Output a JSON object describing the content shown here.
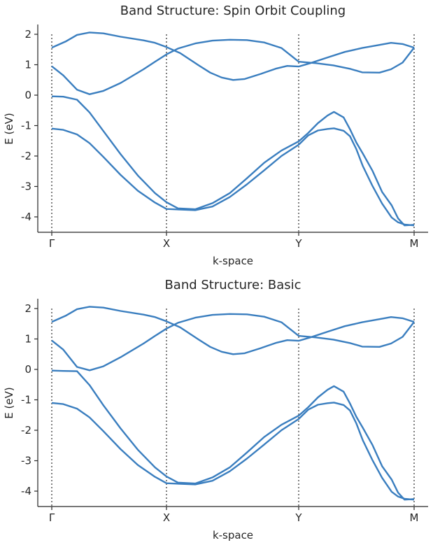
{
  "chart_data": [
    {
      "type": "line",
      "title": "Band Structure: Spin Orbit Coupling",
      "xlabel": "k-space",
      "ylabel": "E (eV)",
      "ylim": [
        -4.5,
        2.35
      ],
      "yticks": [
        2,
        1,
        0,
        -1,
        -2,
        -3,
        -4
      ],
      "ytick_labels": [
        "2",
        "1",
        "0",
        "-1",
        "-2",
        "-3",
        "-4"
      ],
      "k_points": [
        {
          "label": "Γ",
          "k": 0
        },
        {
          "label": "X",
          "k": 1
        },
        {
          "label": "Y",
          "k": 2.15
        },
        {
          "label": "M",
          "k": 3.15
        }
      ],
      "grid": false,
      "series": [
        {
          "color": "#3a7ebf",
          "points": [
            [
              0,
              1.56
            ],
            [
              0.12,
              1.76
            ],
            [
              0.22,
              1.98
            ],
            [
              0.33,
              2.06
            ],
            [
              0.45,
              2.03
            ],
            [
              0.6,
              1.92
            ],
            [
              0.8,
              1.8
            ],
            [
              0.9,
              1.72
            ],
            [
              1,
              1.58
            ],
            [
              1.12,
              1.38
            ],
            [
              1.28,
              0.98
            ],
            [
              1.38,
              0.74
            ],
            [
              1.48,
              0.58
            ],
            [
              1.58,
              0.5
            ],
            [
              1.68,
              0.53
            ],
            [
              1.82,
              0.7
            ],
            [
              1.95,
              0.87
            ],
            [
              2.05,
              0.96
            ],
            [
              2.15,
              0.94
            ],
            [
              2.25,
              1.05
            ],
            [
              2.4,
              1.24
            ],
            [
              2.55,
              1.42
            ],
            [
              2.7,
              1.55
            ],
            [
              2.85,
              1.65
            ],
            [
              2.95,
              1.72
            ],
            [
              3.05,
              1.68
            ],
            [
              3.15,
              1.56
            ]
          ]
        },
        {
          "color": "#3a7ebf",
          "points": [
            [
              0,
              0.95
            ],
            [
              0.1,
              0.65
            ],
            [
              0.22,
              0.18
            ],
            [
              0.33,
              0.03
            ],
            [
              0.45,
              0.14
            ],
            [
              0.6,
              0.4
            ],
            [
              0.8,
              0.85
            ],
            [
              0.9,
              1.1
            ],
            [
              1,
              1.34
            ],
            [
              1.1,
              1.53
            ],
            [
              1.25,
              1.7
            ],
            [
              1.4,
              1.79
            ],
            [
              1.55,
              1.82
            ],
            [
              1.7,
              1.81
            ],
            [
              1.85,
              1.73
            ],
            [
              2,
              1.55
            ],
            [
              2.15,
              1.1
            ],
            [
              2.3,
              1.05
            ],
            [
              2.45,
              0.98
            ],
            [
              2.6,
              0.86
            ],
            [
              2.7,
              0.75
            ],
            [
              2.85,
              0.74
            ],
            [
              2.95,
              0.85
            ],
            [
              3.05,
              1.07
            ],
            [
              3.15,
              1.56
            ]
          ]
        },
        {
          "color": "#3a7ebf",
          "points": [
            [
              0,
              -0.04
            ],
            [
              0.1,
              -0.05
            ],
            [
              0.22,
              -0.15
            ],
            [
              0.33,
              -0.57
            ],
            [
              0.45,
              -1.18
            ],
            [
              0.6,
              -1.94
            ],
            [
              0.75,
              -2.64
            ],
            [
              0.9,
              -3.22
            ],
            [
              1,
              -3.52
            ],
            [
              1.1,
              -3.72
            ],
            [
              1.25,
              -3.75
            ],
            [
              1.4,
              -3.55
            ],
            [
              1.55,
              -3.22
            ],
            [
              1.7,
              -2.73
            ],
            [
              1.85,
              -2.22
            ],
            [
              2,
              -1.82
            ],
            [
              2.15,
              -1.52
            ],
            [
              2.3,
              -1.24
            ],
            [
              2.45,
              -0.92
            ],
            [
              2.6,
              -0.67
            ],
            [
              2.7,
              -0.55
            ],
            [
              2.85,
              -0.73
            ],
            [
              2.95,
              -1.12
            ],
            [
              3.05,
              -1.56
            ],
            [
              3.15,
              -1.92
            ],
            [
              3.3,
              -2.48
            ],
            [
              3.45,
              -3.18
            ],
            [
              3.6,
              -3.62
            ],
            [
              3.7,
              -4.05
            ],
            [
              3.8,
              -4.28
            ],
            [
              3.95,
              -4.26
            ]
          ]
        },
        {
          "color": "#3a7ebf",
          "points": [
            [
              0,
              -1.1
            ],
            [
              0.1,
              -1.14
            ],
            [
              0.22,
              -1.29
            ],
            [
              0.33,
              -1.58
            ],
            [
              0.45,
              -2.03
            ],
            [
              0.6,
              -2.62
            ],
            [
              0.75,
              -3.14
            ],
            [
              0.9,
              -3.53
            ],
            [
              1,
              -3.74
            ],
            [
              1.12,
              -3.76
            ],
            [
              1.25,
              -3.78
            ],
            [
              1.4,
              -3.66
            ],
            [
              1.55,
              -3.35
            ],
            [
              1.7,
              -2.93
            ],
            [
              1.85,
              -2.47
            ],
            [
              2,
              -2.0
            ],
            [
              2.15,
              -1.63
            ],
            [
              2.3,
              -1.32
            ],
            [
              2.45,
              -1.16
            ],
            [
              2.6,
              -1.11
            ],
            [
              2.7,
              -1.09
            ],
            [
              2.85,
              -1.17
            ],
            [
              2.95,
              -1.35
            ],
            [
              3.05,
              -1.78
            ],
            [
              3.15,
              -2.33
            ],
            [
              3.3,
              -2.98
            ],
            [
              3.45,
              -3.56
            ],
            [
              3.6,
              -4.02
            ],
            [
              3.7,
              -4.18
            ],
            [
              3.8,
              -4.25
            ],
            [
              3.95,
              -4.28
            ]
          ]
        }
      ]
    },
    {
      "type": "line",
      "title": "Band Structure: Basic",
      "xlabel": "k-space",
      "ylabel": "E (eV)",
      "ylim": [
        -4.5,
        2.35
      ],
      "yticks": [
        2,
        1,
        0,
        -1,
        -2,
        -3,
        -4
      ],
      "ytick_labels": [
        "2",
        "1",
        "0",
        "-1",
        "-2",
        "-3",
        "-4"
      ],
      "k_points": [
        {
          "label": "Γ",
          "k": 0
        },
        {
          "label": "X",
          "k": 1
        },
        {
          "label": "Y",
          "k": 2.15
        },
        {
          "label": "M",
          "k": 3.15
        }
      ],
      "grid": false,
      "series": [
        {
          "color": "#3a7ebf",
          "points": [
            [
              0,
              1.56
            ],
            [
              0.12,
              1.76
            ],
            [
              0.22,
              1.98
            ],
            [
              0.33,
              2.06
            ],
            [
              0.45,
              2.03
            ],
            [
              0.6,
              1.92
            ],
            [
              0.8,
              1.8
            ],
            [
              0.9,
              1.72
            ],
            [
              1,
              1.58
            ],
            [
              1.12,
              1.38
            ],
            [
              1.28,
              0.98
            ],
            [
              1.38,
              0.74
            ],
            [
              1.48,
              0.58
            ],
            [
              1.58,
              0.5
            ],
            [
              1.68,
              0.53
            ],
            [
              1.82,
              0.7
            ],
            [
              1.95,
              0.87
            ],
            [
              2.05,
              0.96
            ],
            [
              2.15,
              0.94
            ],
            [
              2.25,
              1.05
            ],
            [
              2.4,
              1.24
            ],
            [
              2.55,
              1.42
            ],
            [
              2.7,
              1.55
            ],
            [
              2.85,
              1.65
            ],
            [
              2.95,
              1.72
            ],
            [
              3.05,
              1.68
            ],
            [
              3.15,
              1.56
            ]
          ]
        },
        {
          "color": "#3a7ebf",
          "points": [
            [
              0,
              0.95
            ],
            [
              0.1,
              0.65
            ],
            [
              0.22,
              0.08
            ],
            [
              0.33,
              -0.03
            ],
            [
              0.45,
              0.1
            ],
            [
              0.6,
              0.4
            ],
            [
              0.8,
              0.85
            ],
            [
              0.9,
              1.1
            ],
            [
              1,
              1.34
            ],
            [
              1.1,
              1.53
            ],
            [
              1.25,
              1.7
            ],
            [
              1.4,
              1.79
            ],
            [
              1.55,
              1.82
            ],
            [
              1.7,
              1.81
            ],
            [
              1.85,
              1.73
            ],
            [
              2,
              1.55
            ],
            [
              2.15,
              1.1
            ],
            [
              2.3,
              1.05
            ],
            [
              2.45,
              0.98
            ],
            [
              2.6,
              0.86
            ],
            [
              2.7,
              0.75
            ],
            [
              2.85,
              0.74
            ],
            [
              2.95,
              0.85
            ],
            [
              3.05,
              1.07
            ],
            [
              3.15,
              1.56
            ]
          ]
        },
        {
          "color": "#3a7ebf",
          "points": [
            [
              0,
              -0.04
            ],
            [
              0.1,
              -0.05
            ],
            [
              0.22,
              -0.06
            ],
            [
              0.33,
              -0.52
            ],
            [
              0.45,
              -1.18
            ],
            [
              0.6,
              -1.94
            ],
            [
              0.75,
              -2.64
            ],
            [
              0.9,
              -3.22
            ],
            [
              1,
              -3.52
            ],
            [
              1.1,
              -3.72
            ],
            [
              1.25,
              -3.75
            ],
            [
              1.4,
              -3.55
            ],
            [
              1.55,
              -3.22
            ],
            [
              1.7,
              -2.73
            ],
            [
              1.85,
              -2.22
            ],
            [
              2,
              -1.82
            ],
            [
              2.15,
              -1.52
            ],
            [
              2.3,
              -1.24
            ],
            [
              2.45,
              -0.92
            ],
            [
              2.6,
              -0.67
            ],
            [
              2.7,
              -0.55
            ],
            [
              2.85,
              -0.73
            ],
            [
              2.95,
              -1.12
            ],
            [
              3.05,
              -1.56
            ],
            [
              3.15,
              -1.92
            ],
            [
              3.3,
              -2.48
            ],
            [
              3.45,
              -3.18
            ],
            [
              3.6,
              -3.62
            ],
            [
              3.7,
              -4.05
            ],
            [
              3.8,
              -4.28
            ],
            [
              3.95,
              -4.26
            ]
          ]
        },
        {
          "color": "#3a7ebf",
          "points": [
            [
              0,
              -1.1
            ],
            [
              0.1,
              -1.14
            ],
            [
              0.22,
              -1.29
            ],
            [
              0.33,
              -1.58
            ],
            [
              0.45,
              -2.03
            ],
            [
              0.6,
              -2.62
            ],
            [
              0.75,
              -3.14
            ],
            [
              0.9,
              -3.53
            ],
            [
              1,
              -3.74
            ],
            [
              1.12,
              -3.76
            ],
            [
              1.25,
              -3.78
            ],
            [
              1.4,
              -3.66
            ],
            [
              1.55,
              -3.35
            ],
            [
              1.7,
              -2.93
            ],
            [
              1.85,
              -2.47
            ],
            [
              2,
              -2.0
            ],
            [
              2.15,
              -1.63
            ],
            [
              2.3,
              -1.32
            ],
            [
              2.45,
              -1.16
            ],
            [
              2.6,
              -1.11
            ],
            [
              2.7,
              -1.09
            ],
            [
              2.85,
              -1.17
            ],
            [
              2.95,
              -1.35
            ],
            [
              3.05,
              -1.78
            ],
            [
              3.15,
              -2.33
            ],
            [
              3.3,
              -2.98
            ],
            [
              3.45,
              -3.56
            ],
            [
              3.6,
              -4.02
            ],
            [
              3.7,
              -4.18
            ],
            [
              3.8,
              -4.25
            ],
            [
              3.95,
              -4.28
            ]
          ]
        }
      ]
    }
  ]
}
